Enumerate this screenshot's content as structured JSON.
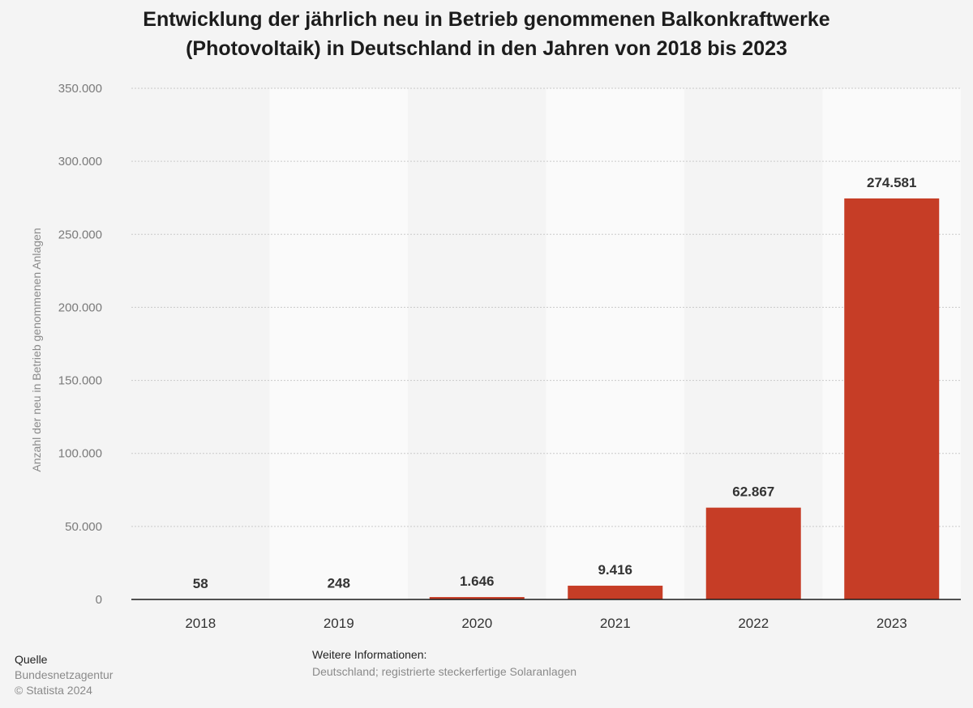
{
  "chart_data": {
    "type": "bar",
    "title_line1": "Entwicklung der jährlich neu in Betrieb genommenen Balkonkraftwerke",
    "title_line2": "(Photovoltaik) in Deutschland in den Jahren von 2018 bis 2023",
    "categories": [
      "2018",
      "2019",
      "2020",
      "2021",
      "2022",
      "2023"
    ],
    "values": [
      58,
      248,
      1646,
      9416,
      62867,
      274581
    ],
    "value_labels": [
      "58",
      "248",
      "1.646",
      "9.416",
      "62.867",
      "274.581"
    ],
    "xlabel": "",
    "ylabel": "Anzahl der neu in Betrieb genommenen Anlagen",
    "ylim": [
      0,
      350000
    ],
    "yticks": [
      0,
      50000,
      100000,
      150000,
      200000,
      250000,
      300000,
      350000
    ],
    "ytick_labels": [
      "0",
      "50.000",
      "100.000",
      "150.000",
      "200.000",
      "250.000",
      "300.000",
      "350.000"
    ],
    "grid": true,
    "bar_color": "#c63d26"
  },
  "footer": {
    "source_label": "Quelle",
    "source_value": "Bundesnetzagentur",
    "copyright": "© Statista 2024",
    "info_label": "Weitere Informationen:",
    "info_value": "Deutschland; registrierte steckerfertige Solaranlagen"
  }
}
